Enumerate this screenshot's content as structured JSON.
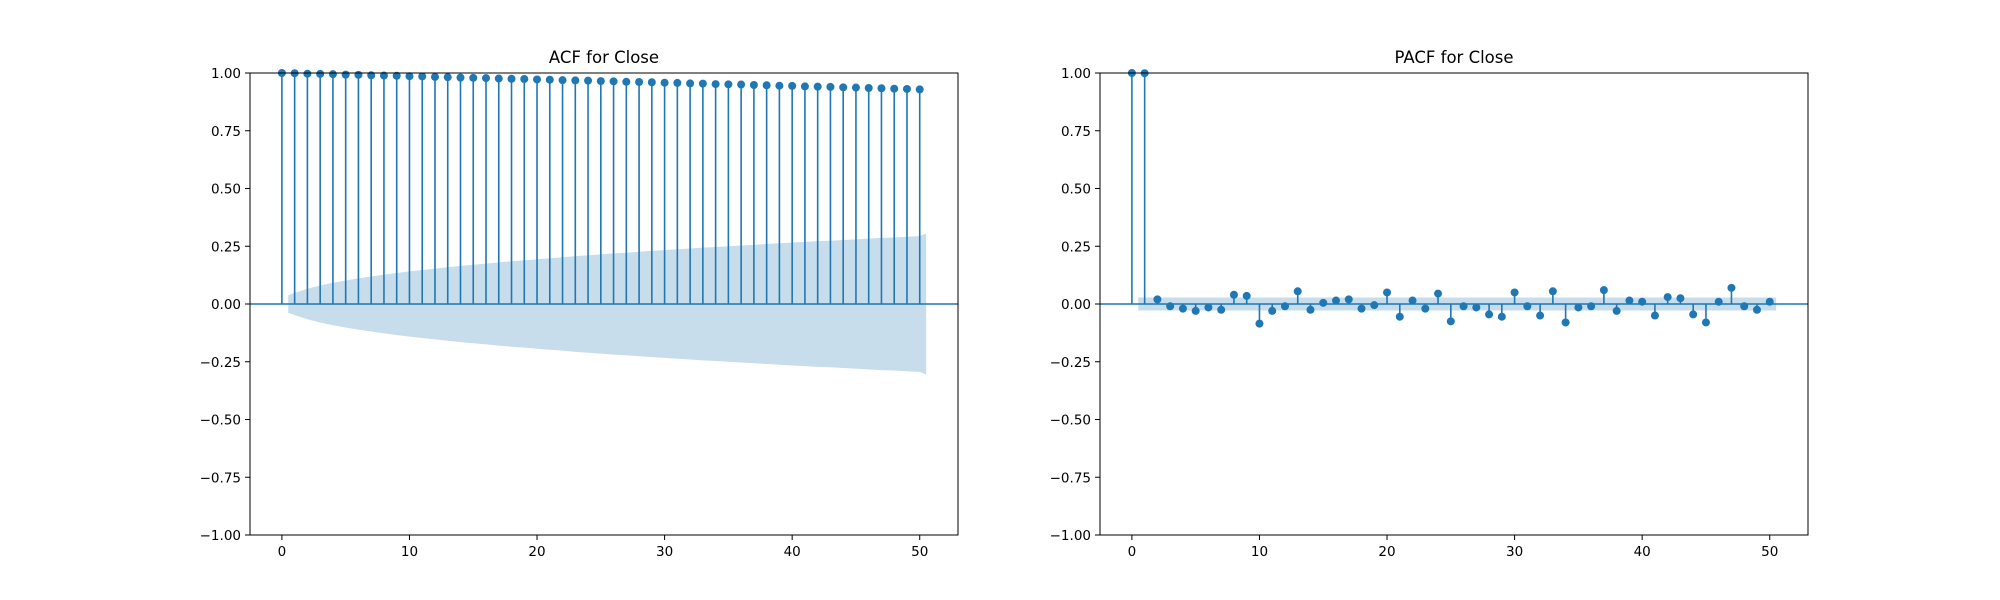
{
  "colors": {
    "stem": "#1f77b4",
    "band": "#1f77b4",
    "axis": "#000000",
    "background": "#ffffff"
  },
  "chart_data": [
    {
      "id": "acf",
      "type": "stem",
      "title": "ACF for Close",
      "xlabel": "",
      "ylabel": "",
      "xlim": [
        -2.5,
        53
      ],
      "ylim": [
        -1.0,
        1.0
      ],
      "x_ticks": [
        0,
        10,
        20,
        30,
        40,
        50
      ],
      "y_ticks": [
        -1.0,
        -0.75,
        -0.5,
        -0.25,
        0.0,
        0.25,
        0.5,
        0.75,
        1.0
      ],
      "y_tick_labels": [
        "−1.00",
        "−0.75",
        "−0.50",
        "−0.25",
        "0.00",
        "0.25",
        "0.50",
        "0.75",
        "1.00"
      ],
      "x_tick_labels": [
        "0",
        "10",
        "20",
        "30",
        "40",
        "50"
      ],
      "grid": false,
      "lags": [
        0,
        1,
        2,
        3,
        4,
        5,
        6,
        7,
        8,
        9,
        10,
        11,
        12,
        13,
        14,
        15,
        16,
        17,
        18,
        19,
        20,
        21,
        22,
        23,
        24,
        25,
        26,
        27,
        28,
        29,
        30,
        31,
        32,
        33,
        34,
        35,
        36,
        37,
        38,
        39,
        40,
        41,
        42,
        43,
        44,
        45,
        46,
        47,
        48,
        49,
        50
      ],
      "values": [
        1.0,
        0.999,
        0.997,
        0.996,
        0.995,
        0.993,
        0.992,
        0.99,
        0.989,
        0.988,
        0.986,
        0.985,
        0.983,
        0.982,
        0.98,
        0.979,
        0.978,
        0.976,
        0.975,
        0.974,
        0.972,
        0.971,
        0.969,
        0.968,
        0.967,
        0.965,
        0.964,
        0.962,
        0.961,
        0.96,
        0.958,
        0.957,
        0.955,
        0.954,
        0.952,
        0.951,
        0.95,
        0.948,
        0.947,
        0.945,
        0.944,
        0.942,
        0.941,
        0.94,
        0.938,
        0.937,
        0.935,
        0.934,
        0.932,
        0.931,
        0.929
      ],
      "confidence_band": {
        "lags": [
          0.5,
          1,
          2,
          3,
          4,
          5,
          6,
          7,
          8,
          9,
          10,
          11,
          12,
          13,
          14,
          15,
          16,
          17,
          18,
          19,
          20,
          21,
          22,
          23,
          24,
          25,
          26,
          27,
          28,
          29,
          30,
          31,
          32,
          33,
          34,
          35,
          36,
          37,
          38,
          39,
          40,
          41,
          42,
          43,
          44,
          45,
          46,
          47,
          48,
          49,
          50,
          50.5
        ],
        "upper": [
          0.038,
          0.048,
          0.066,
          0.08,
          0.092,
          0.102,
          0.111,
          0.119,
          0.127,
          0.134,
          0.141,
          0.147,
          0.153,
          0.159,
          0.165,
          0.17,
          0.175,
          0.18,
          0.185,
          0.189,
          0.194,
          0.198,
          0.202,
          0.207,
          0.211,
          0.215,
          0.219,
          0.222,
          0.226,
          0.23,
          0.233,
          0.237,
          0.24,
          0.244,
          0.247,
          0.25,
          0.253,
          0.256,
          0.26,
          0.263,
          0.266,
          0.269,
          0.272,
          0.274,
          0.277,
          0.28,
          0.283,
          0.286,
          0.288,
          0.291,
          0.294,
          0.305
        ]
      }
    },
    {
      "id": "pacf",
      "type": "stem",
      "title": "PACF for Close",
      "xlabel": "",
      "ylabel": "",
      "xlim": [
        -2.5,
        53
      ],
      "ylim": [
        -1.0,
        1.0
      ],
      "x_ticks": [
        0,
        10,
        20,
        30,
        40,
        50
      ],
      "y_ticks": [
        -1.0,
        -0.75,
        -0.5,
        -0.25,
        0.0,
        0.25,
        0.5,
        0.75,
        1.0
      ],
      "y_tick_labels": [
        "−1.00",
        "−0.75",
        "−0.50",
        "−0.25",
        "0.00",
        "0.25",
        "0.50",
        "0.75",
        "1.00"
      ],
      "x_tick_labels": [
        "0",
        "10",
        "20",
        "30",
        "40",
        "50"
      ],
      "grid": false,
      "lags": [
        0,
        1,
        2,
        3,
        4,
        5,
        6,
        7,
        8,
        9,
        10,
        11,
        12,
        13,
        14,
        15,
        16,
        17,
        18,
        19,
        20,
        21,
        22,
        23,
        24,
        25,
        26,
        27,
        28,
        29,
        30,
        31,
        32,
        33,
        34,
        35,
        36,
        37,
        38,
        39,
        40,
        41,
        42,
        43,
        44,
        45,
        46,
        47,
        48,
        49,
        50
      ],
      "values": [
        1.0,
        0.999,
        0.02,
        -0.01,
        -0.02,
        -0.03,
        -0.015,
        -0.025,
        0.04,
        0.035,
        -0.085,
        -0.03,
        -0.01,
        0.055,
        -0.025,
        0.005,
        0.015,
        0.02,
        -0.02,
        -0.005,
        0.05,
        -0.055,
        0.015,
        -0.02,
        0.045,
        -0.075,
        -0.01,
        -0.015,
        -0.045,
        -0.055,
        0.05,
        -0.01,
        -0.05,
        0.055,
        -0.08,
        -0.015,
        -0.01,
        0.06,
        -0.03,
        0.015,
        0.01,
        -0.05,
        0.03,
        0.025,
        -0.045,
        -0.08,
        0.01,
        0.07,
        -0.01,
        -0.025,
        0.01
      ],
      "confidence_band": {
        "lags": [
          0.5,
          50.5
        ],
        "upper": [
          0.028,
          0.028
        ]
      }
    }
  ]
}
